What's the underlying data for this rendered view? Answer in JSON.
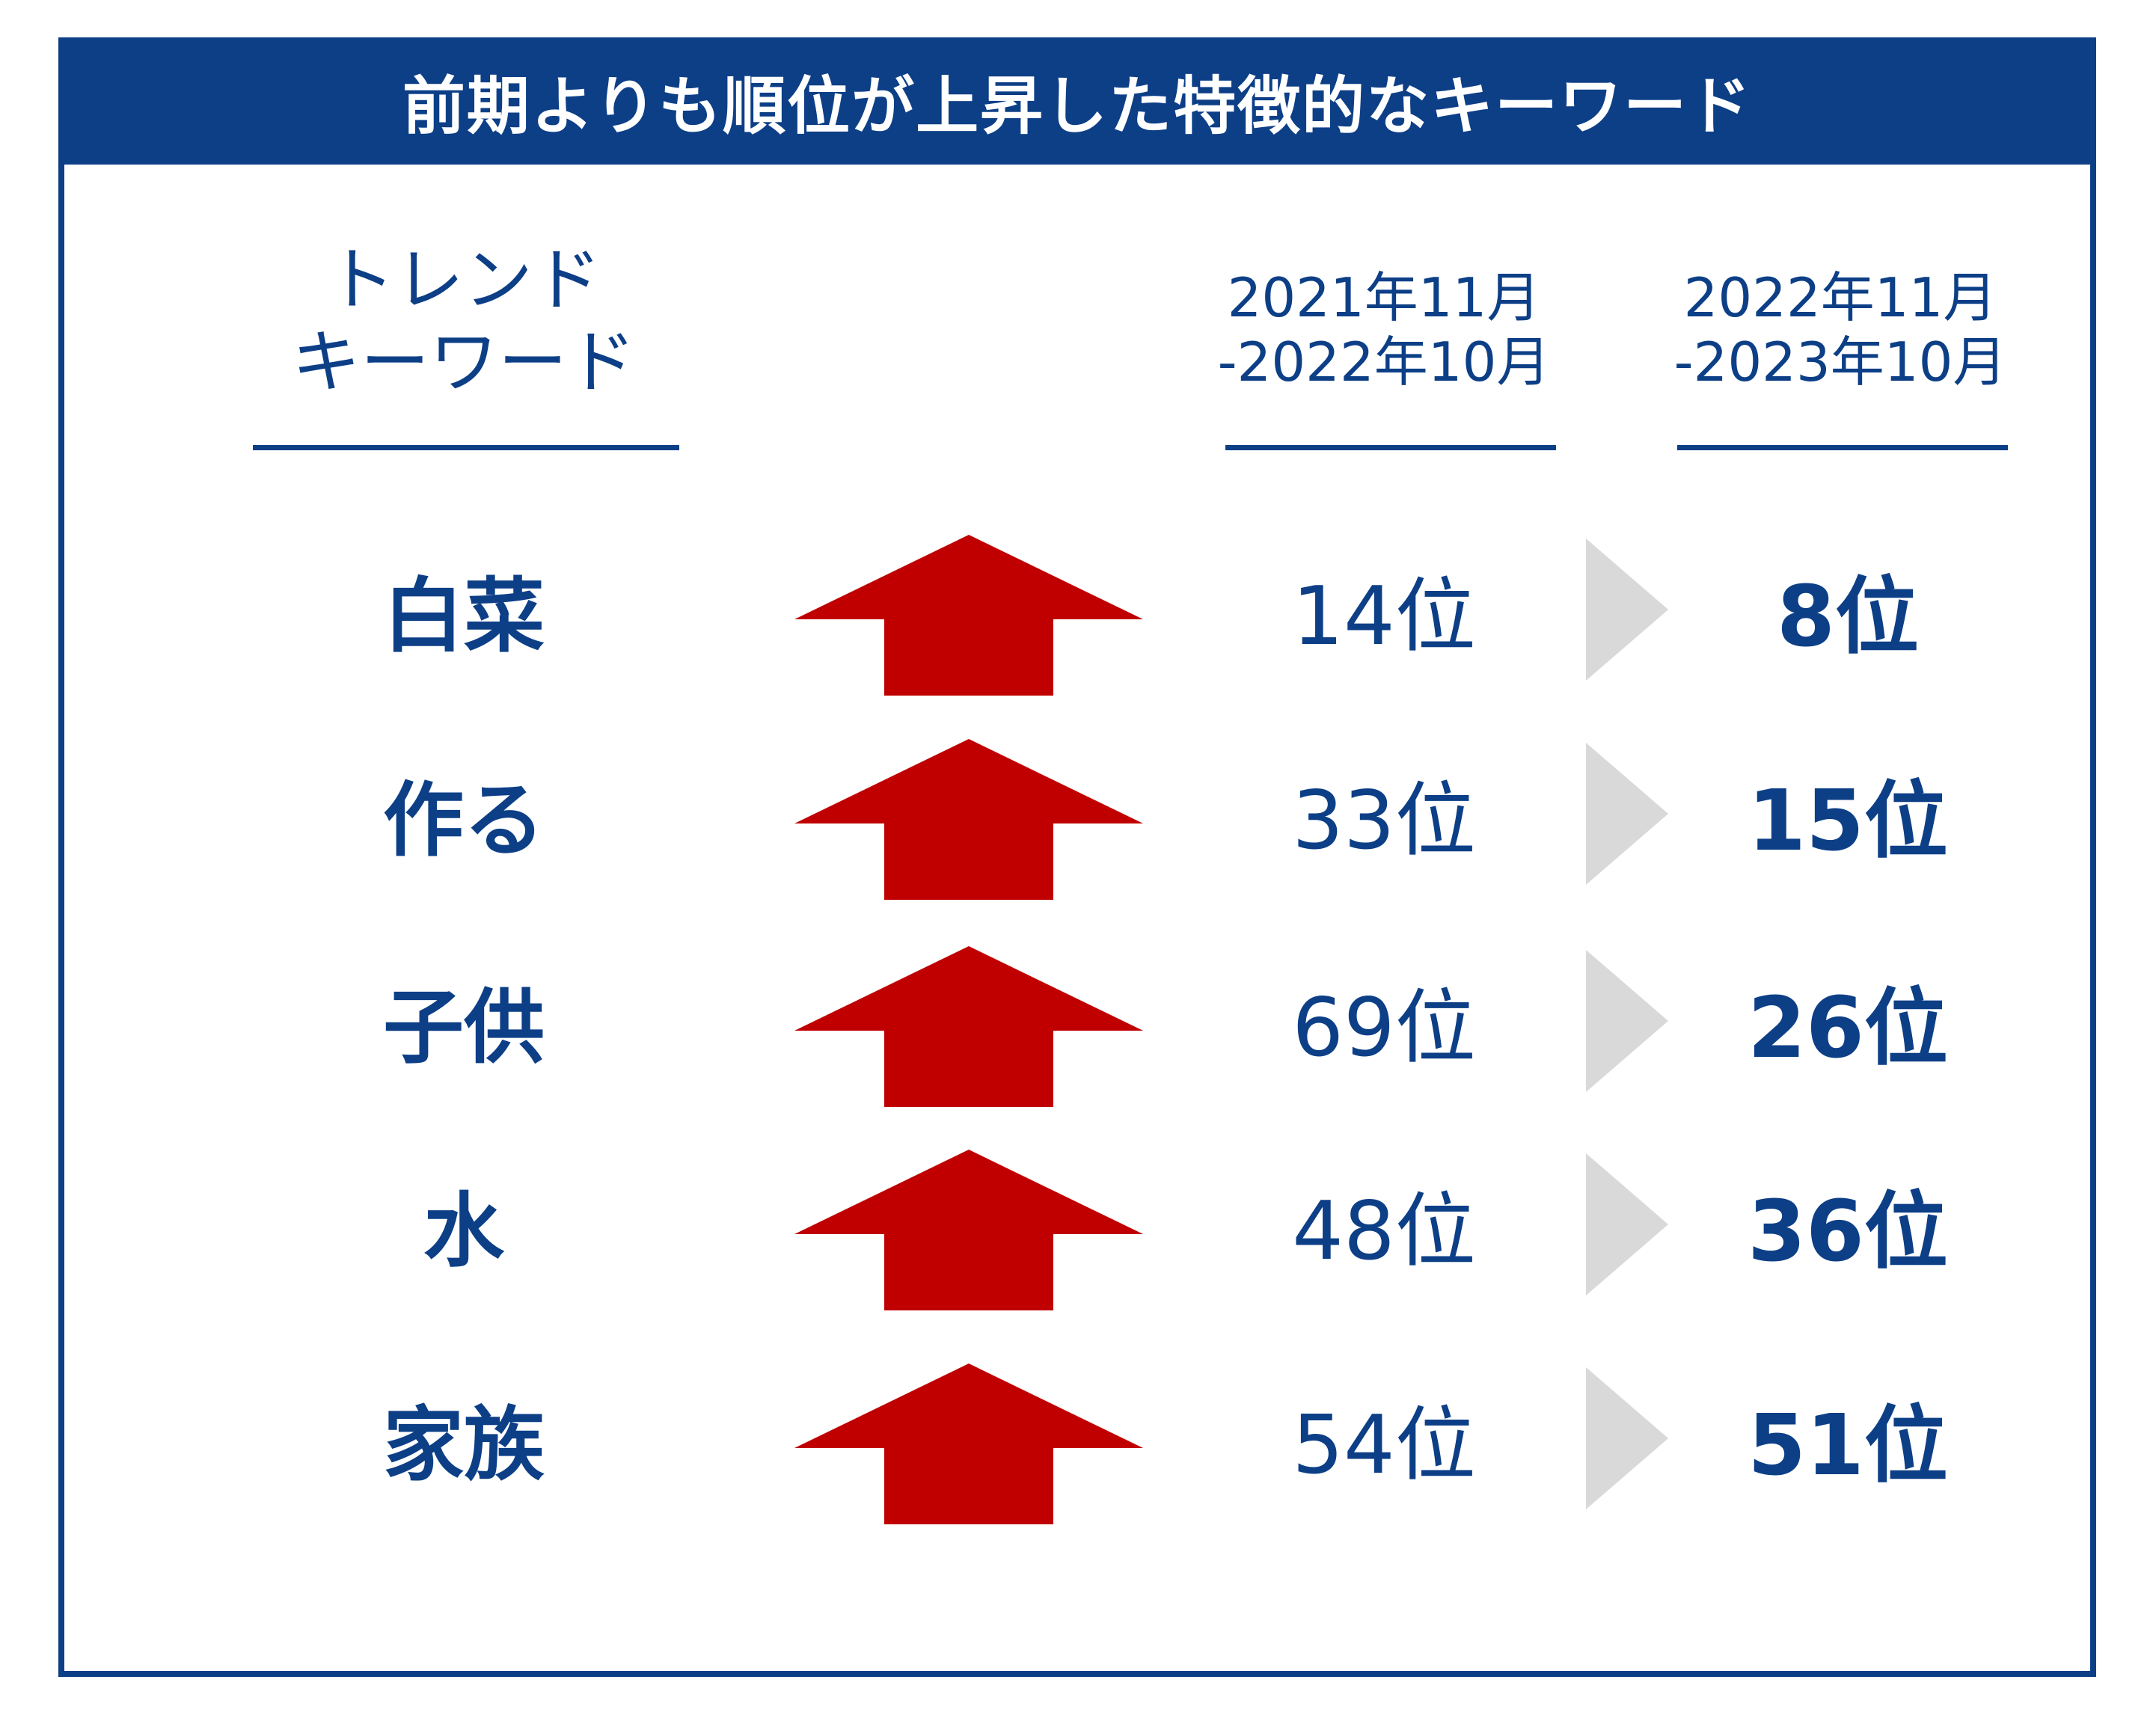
{
  "title": "前期よりも順位が上昇した特徴的なキーワード",
  "headers": {
    "keyword_line1": "トレンド",
    "keyword_line2": "キーワード",
    "prev_line1": "2021年11月",
    "prev_line2": "-2022年10月",
    "curr_line1": "2022年11月",
    "curr_line2": "-2023年10月"
  },
  "colors": {
    "navy": "#0d3f87",
    "arrow_red": "#c00000",
    "triangle_gray": "#d9d9d9"
  },
  "rows": [
    {
      "keyword": "白菜",
      "prev_rank": "14位",
      "curr_rank": "8位",
      "trend": "up-arrow-icon"
    },
    {
      "keyword": "作る",
      "prev_rank": "33位",
      "curr_rank": "15位",
      "trend": "up-arrow-icon"
    },
    {
      "keyword": "子供",
      "prev_rank": "69位",
      "curr_rank": "26位",
      "trend": "up-arrow-icon"
    },
    {
      "keyword": "水",
      "prev_rank": "48位",
      "curr_rank": "36位",
      "trend": "up-arrow-icon"
    },
    {
      "keyword": "家族",
      "prev_rank": "54位",
      "curr_rank": "51位",
      "trend": "up-arrow-icon"
    }
  ]
}
